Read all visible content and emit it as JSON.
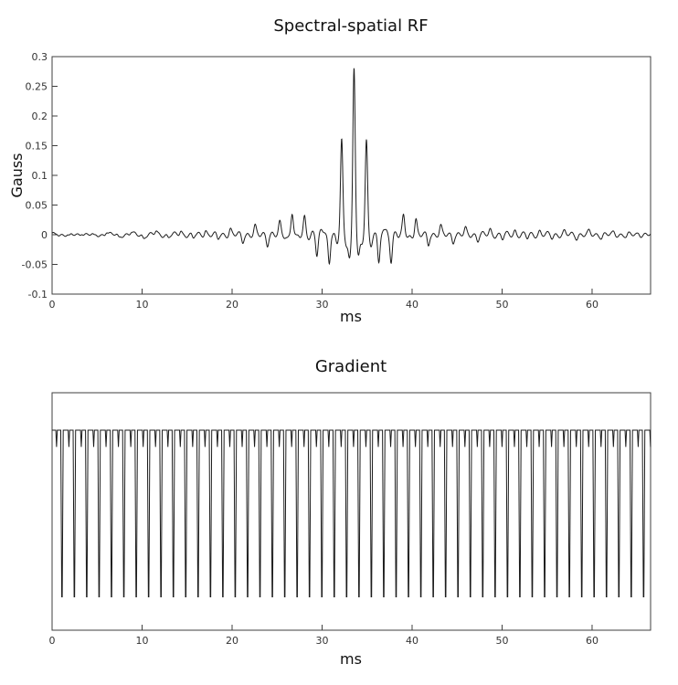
{
  "page": {
    "background": "#ffffff"
  },
  "chart_data": [
    {
      "type": "line",
      "title": "Spectral-spatial RF",
      "xlabel": "ms",
      "ylabel": "Gauss",
      "xlim": [
        0,
        66.5
      ],
      "ylim": [
        -0.1,
        0.3
      ],
      "xticks": [
        0,
        10,
        20,
        30,
        40,
        50,
        60
      ],
      "yticks": [
        0.3,
        0.25,
        0.2,
        0.15,
        0.1,
        0.05,
        0,
        -0.05,
        -0.1
      ],
      "ytick_labels": [
        "0.3",
        "0.25",
        "0.2",
        "0.15",
        "0.1",
        "0.05",
        "0",
        "-0.05",
        "-0.1"
      ],
      "line_color": "#1c1c1c",
      "grid": false,
      "legend": null,
      "peak_annotations": [
        {
          "t": 33.55,
          "a": 0.28
        },
        {
          "t": 32.18,
          "a": 0.163
        },
        {
          "t": 34.93,
          "a": 0.163
        },
        {
          "t": 30.8,
          "a": -0.05
        },
        {
          "t": 36.3,
          "a": -0.05
        }
      ],
      "subpulse_period_ms": 1.375,
      "subpulse_width_ms": 0.18,
      "sidelobe": 0.12,
      "sidelobe_offset_ms": 0.5,
      "ripple": [
        {
          "amp": 0.003,
          "period": 0.9,
          "phase": 0.5
        },
        {
          "amp": 0.002,
          "period": 2.3,
          "phase": 2.1
        }
      ],
      "subpulses": [
        [
          0.55,
          0.004
        ],
        [
          1.925,
          -0.005
        ],
        [
          3.3,
          0.005
        ],
        [
          4.675,
          -0.004
        ],
        [
          6.05,
          0.006
        ],
        [
          7.425,
          -0.005
        ],
        [
          8.8,
          0.004
        ],
        [
          10.175,
          -0.006
        ],
        [
          11.55,
          0.006
        ],
        [
          12.925,
          -0.005
        ],
        [
          14.3,
          0.007
        ],
        [
          15.675,
          -0.007
        ],
        [
          17.05,
          0.008
        ],
        [
          18.425,
          -0.008
        ],
        [
          19.8,
          0.01
        ],
        [
          21.175,
          -0.012
        ],
        [
          22.55,
          0.014
        ],
        [
          23.925,
          -0.016
        ],
        [
          25.3,
          0.02
        ],
        [
          26.675,
          0.038
        ],
        [
          28.05,
          0.03
        ],
        [
          29.425,
          -0.035
        ],
        [
          30.8,
          -0.05
        ],
        [
          32.175,
          0.163
        ],
        [
          33.55,
          0.28
        ],
        [
          34.925,
          0.163
        ],
        [
          36.3,
          -0.05
        ],
        [
          37.675,
          -0.045
        ],
        [
          39.05,
          0.032
        ],
        [
          40.425,
          0.028
        ],
        [
          41.8,
          -0.018
        ],
        [
          43.175,
          0.015
        ],
        [
          44.55,
          -0.012
        ],
        [
          45.925,
          0.01
        ],
        [
          47.3,
          -0.009
        ],
        [
          48.675,
          0.008
        ],
        [
          50.05,
          -0.007
        ],
        [
          51.425,
          0.007
        ],
        [
          52.8,
          -0.006
        ],
        [
          54.175,
          0.006
        ],
        [
          55.55,
          -0.005
        ],
        [
          56.925,
          0.005
        ],
        [
          58.3,
          -0.005
        ],
        [
          59.675,
          0.005
        ],
        [
          61.05,
          -0.004
        ],
        [
          62.425,
          0.004
        ],
        [
          63.8,
          -0.004
        ],
        [
          65.175,
          0.003
        ]
      ]
    },
    {
      "type": "line",
      "title": "Gradient",
      "xlabel": "ms",
      "ylabel": "",
      "xlim": [
        0,
        66.5
      ],
      "ylim": [
        -1.4,
        1.45
      ],
      "xticks": [
        0,
        10,
        20,
        30,
        40,
        50,
        60
      ],
      "yticks": [],
      "line_color": "#1c1c1c",
      "grid": false,
      "legend": null,
      "waveform": {
        "period_ms": 1.375,
        "n_periods": 49,
        "amplitude": 1,
        "period_shape": [
          [
            0.0,
            1
          ],
          [
            0.3,
            1
          ],
          [
            0.36,
            0.8
          ],
          [
            0.42,
            1
          ],
          [
            0.7,
            1
          ],
          [
            0.78,
            -1
          ],
          [
            0.82,
            -1
          ],
          [
            0.9,
            1
          ],
          [
            1.0,
            1
          ]
        ]
      }
    }
  ]
}
